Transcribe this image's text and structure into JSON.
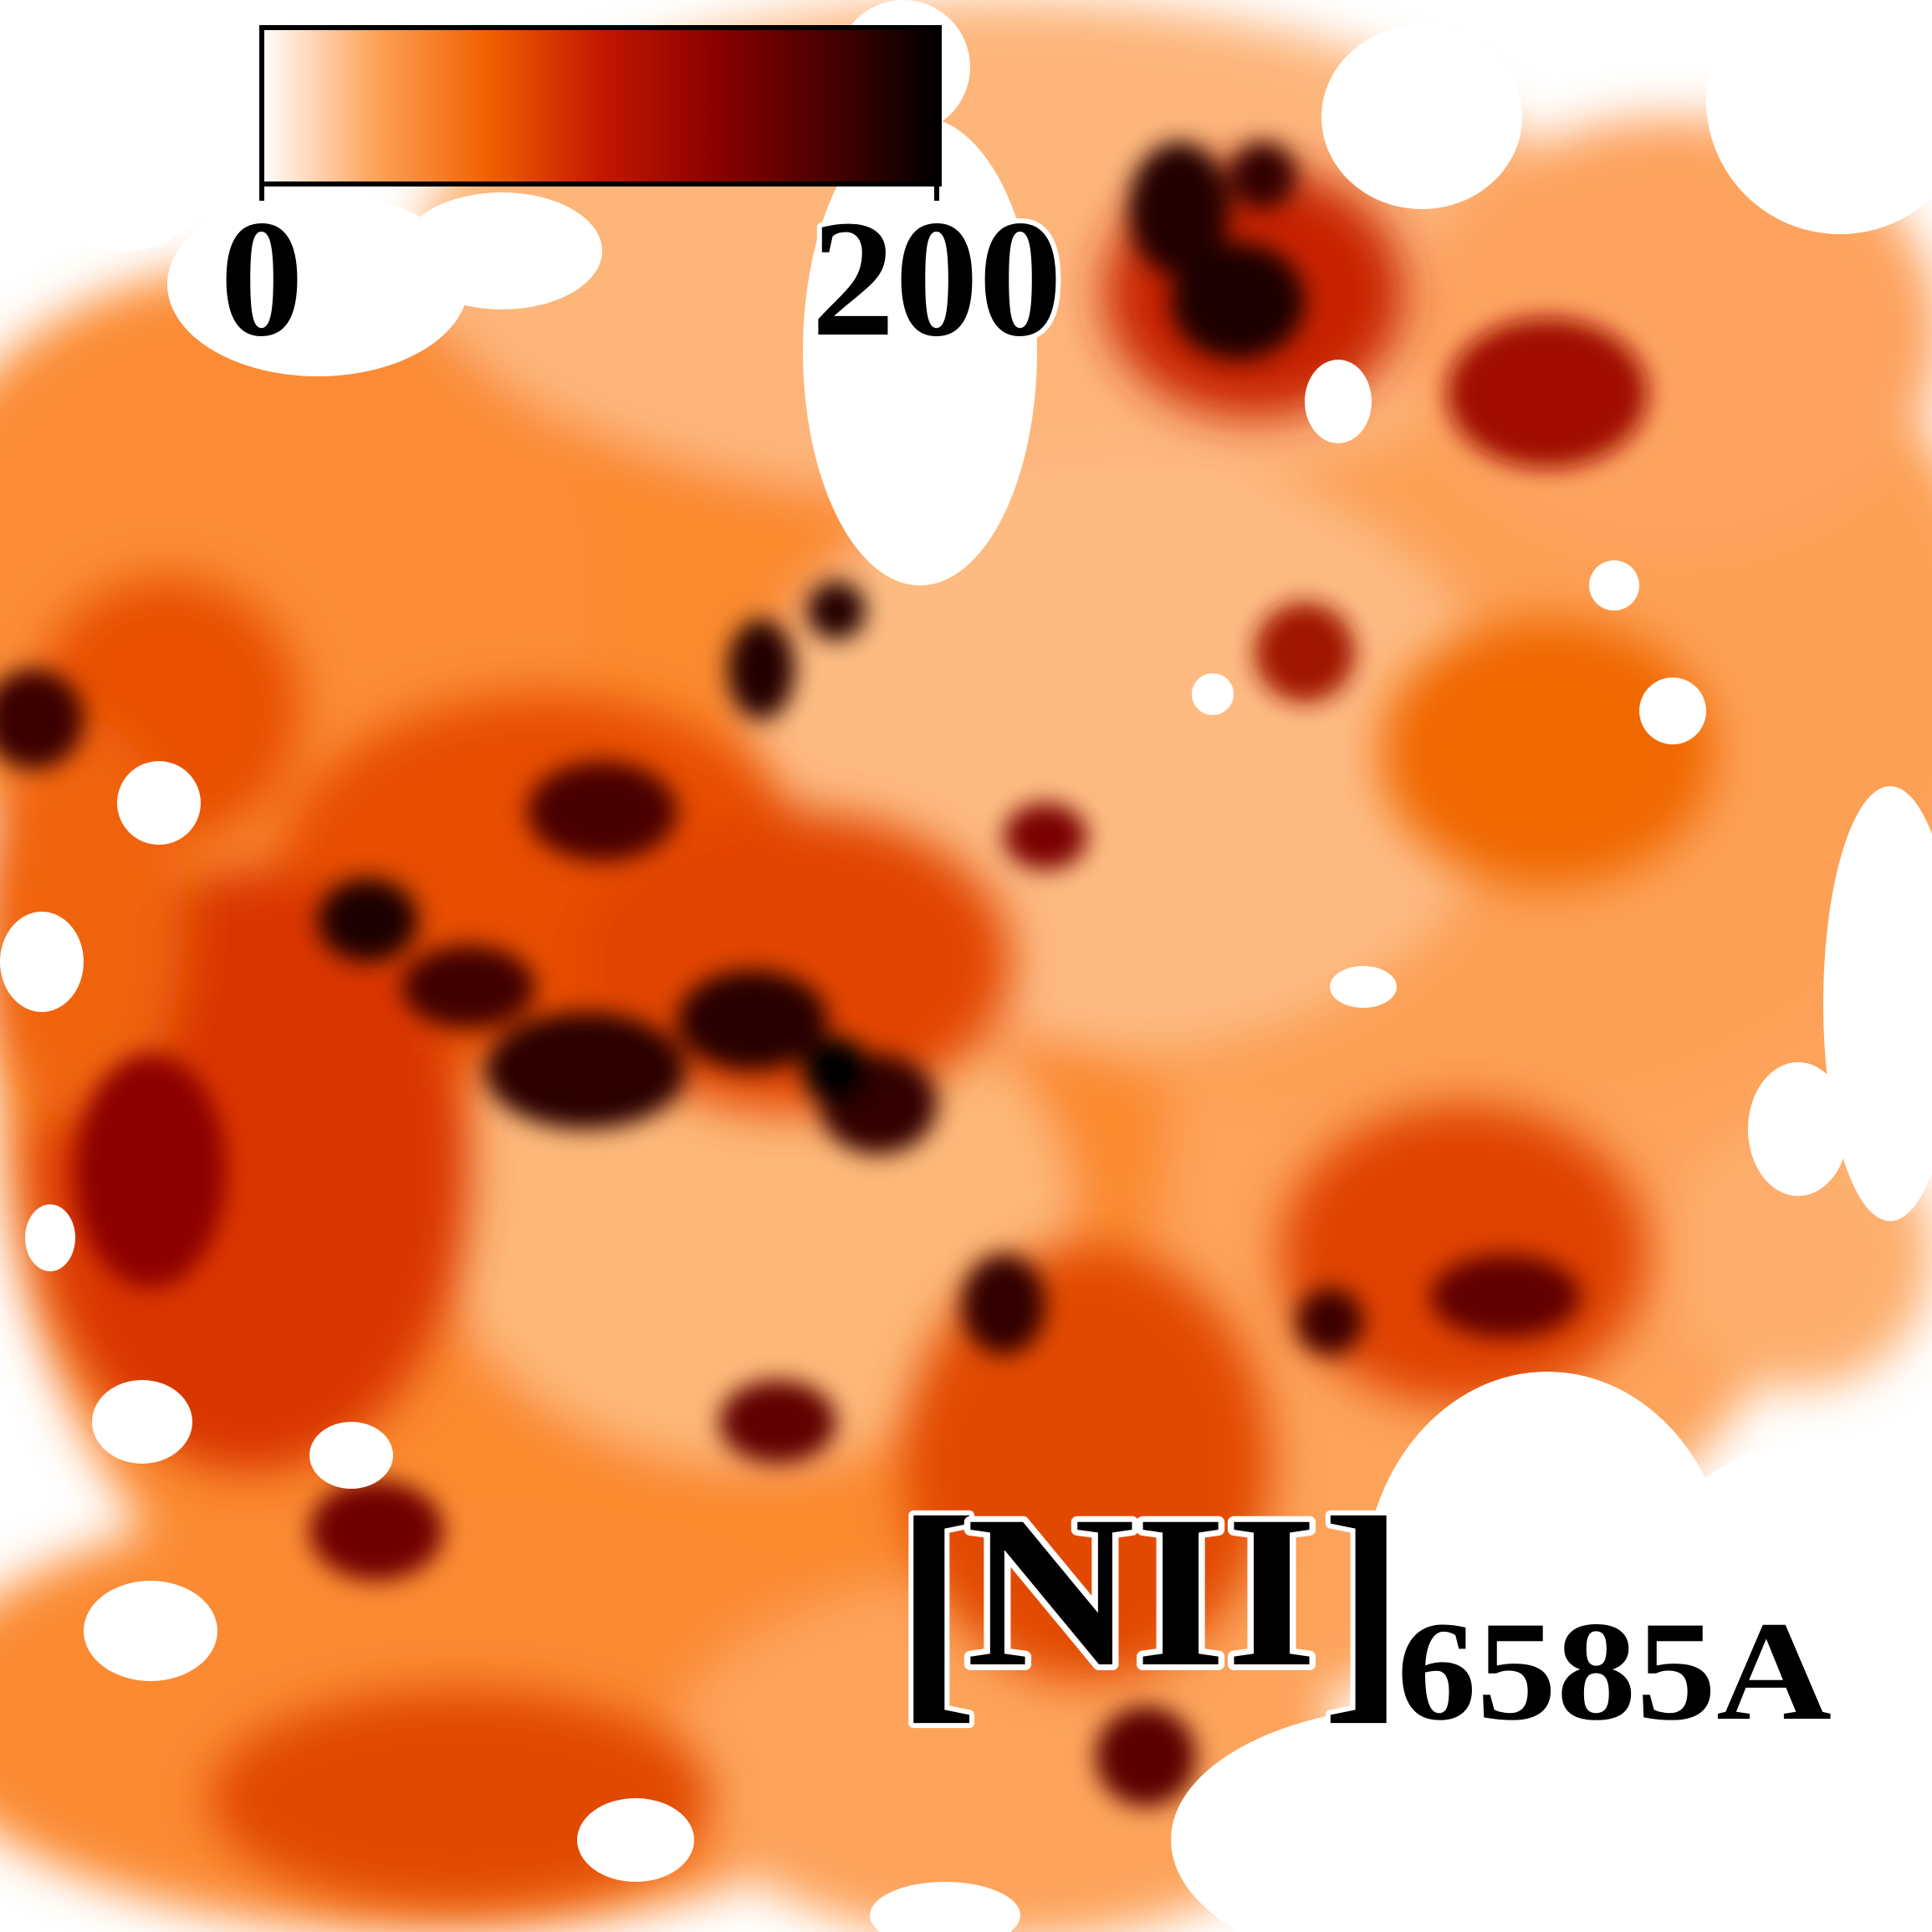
{
  "colorbar": {
    "min_label": "0",
    "max_label": "200",
    "min_value": 0,
    "max_value": 200,
    "stops": [
      "#ffffff",
      "#fda35a",
      "#f26000",
      "#c31800",
      "#8c0000",
      "#4a0000",
      "#000000"
    ]
  },
  "label": {
    "species": "NII",
    "wavelength": "6585A"
  },
  "colors": {
    "background": "#ffffff",
    "outline": "#ffffff",
    "text": "#000000"
  }
}
